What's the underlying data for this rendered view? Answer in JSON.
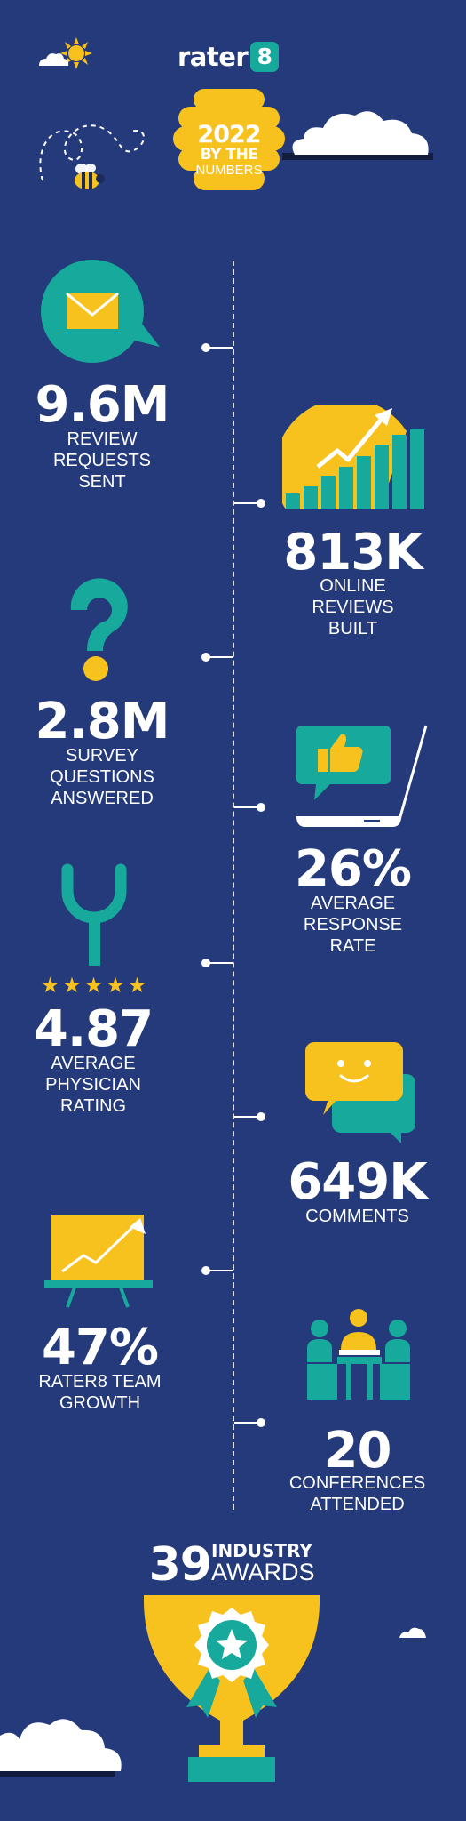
{
  "header": {
    "logo_text": "rater",
    "logo_badge": "8",
    "year": "2022",
    "by_the": "BY THE",
    "numbers": "NUMBERS"
  },
  "stats": [
    {
      "value": "9.6M",
      "label": "REVIEW\nREQUESTS\nSENT",
      "icon": "envelope-icon"
    },
    {
      "value": "813K",
      "label": "ONLINE\nREVIEWS\nBUILT",
      "icon": "growth-chart-icon"
    },
    {
      "value": "2.8M",
      "label": "SURVEY\nQUESTIONS\nANSWERED",
      "icon": "question-mark-icon"
    },
    {
      "value": "26%",
      "label": "AVERAGE\nRESPONSE\nRATE",
      "icon": "laptop-thumbs-up-icon"
    },
    {
      "value": "4.87",
      "label": "AVERAGE\nPHYSICIAN\nRATING",
      "icon": "stethoscope-icon",
      "stars": "★★★★★"
    },
    {
      "value": "649K",
      "label": "COMMENTS",
      "icon": "chat-bubbles-icon"
    },
    {
      "value": "47%",
      "label": "RATER8 TEAM\nGROWTH",
      "icon": "presentation-board-icon"
    },
    {
      "value": "20",
      "label": "CONFERENCES\nATTENDED",
      "icon": "conference-table-icon"
    }
  ],
  "awards": {
    "value": "39",
    "line1": "INDUSTRY",
    "line2": "AWARDS"
  },
  "colors": {
    "background": "#243a7a",
    "teal": "#17a99b",
    "yellow": "#f8c21e",
    "white": "#ffffff"
  }
}
